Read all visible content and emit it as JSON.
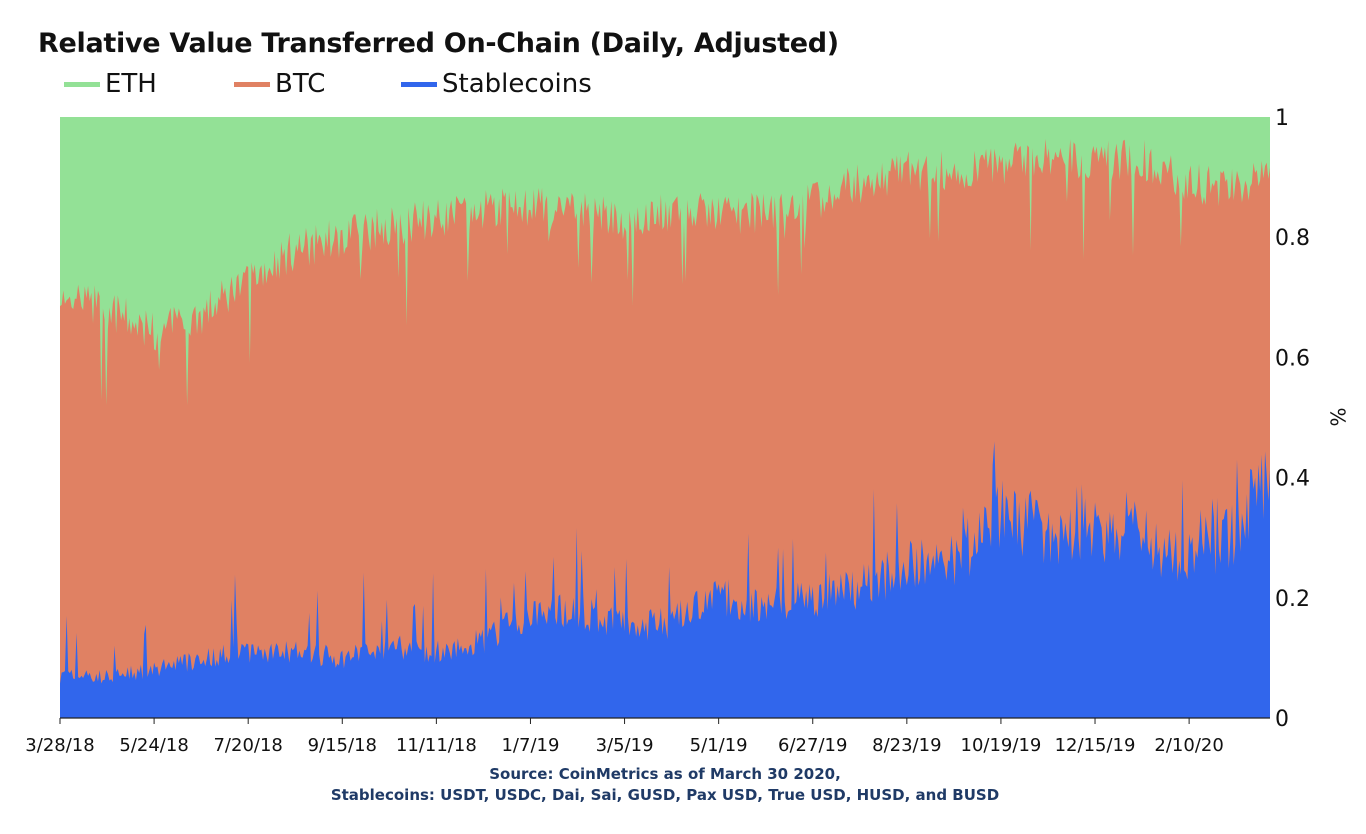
{
  "chart_data": {
    "type": "area",
    "stacked": true,
    "normalized": true,
    "title": "Relative Value Transferred On-Chain (Daily, Adjusted)",
    "ylabel": "%",
    "xlabel": "",
    "ylim": [
      0,
      1
    ],
    "yticks": [
      "0",
      "0.2",
      "0.4",
      "0.6",
      "0.8",
      "1"
    ],
    "xticks": [
      "3/28/18",
      "5/24/18",
      "7/20/18",
      "9/15/18",
      "11/11/18",
      "1/7/19",
      "3/5/19",
      "5/1/19",
      "6/27/19",
      "8/23/19",
      "10/19/19",
      "12/15/19",
      "2/10/20"
    ],
    "grid": false,
    "legend_position": "top-left",
    "x_start": "2018-03-28",
    "x_end": "2020-03-30",
    "series": [
      {
        "name": "ETH",
        "color": "#93e196"
      },
      {
        "name": "BTC",
        "color": "#e08163"
      },
      {
        "name": "Stablecoins",
        "color": "#3166ec"
      }
    ],
    "x": [
      "3/28/18",
      "4/26/18",
      "5/24/18",
      "6/22/18",
      "7/20/18",
      "8/18/18",
      "9/15/18",
      "10/14/18",
      "11/11/18",
      "12/10/18",
      "1/7/19",
      "2/5/19",
      "3/5/19",
      "4/3/19",
      "5/1/19",
      "5/30/19",
      "6/27/19",
      "7/26/19",
      "8/23/19",
      "9/21/19",
      "10/19/19",
      "11/17/19",
      "12/15/19",
      "1/13/20",
      "2/10/20",
      "3/10/20",
      "3/30/20"
    ],
    "stablecoins_share": [
      0.07,
      0.07,
      0.08,
      0.1,
      0.11,
      0.11,
      0.1,
      0.12,
      0.11,
      0.13,
      0.17,
      0.18,
      0.15,
      0.16,
      0.2,
      0.19,
      0.2,
      0.22,
      0.25,
      0.26,
      0.34,
      0.31,
      0.31,
      0.3,
      0.26,
      0.31,
      0.41
    ],
    "btc_cumulative_share": [
      0.7,
      0.68,
      0.64,
      0.67,
      0.73,
      0.78,
      0.8,
      0.82,
      0.83,
      0.85,
      0.85,
      0.84,
      0.83,
      0.84,
      0.84,
      0.84,
      0.86,
      0.89,
      0.91,
      0.91,
      0.92,
      0.93,
      0.93,
      0.93,
      0.89,
      0.88,
      0.91
    ],
    "eth_cumulative_share": [
      1,
      1,
      1,
      1,
      1,
      1,
      1,
      1,
      1,
      1,
      1,
      1,
      1,
      1,
      1,
      1,
      1,
      1,
      1,
      1,
      1,
      1,
      1,
      1,
      1,
      1,
      1
    ]
  },
  "source": {
    "line1": "Source: CoinMetrics as of March 30 2020,",
    "line2": "Stablecoins: USDT, USDC, Dai, Sai, GUSD, Pax USD, True USD, HUSD, and BUSD"
  }
}
